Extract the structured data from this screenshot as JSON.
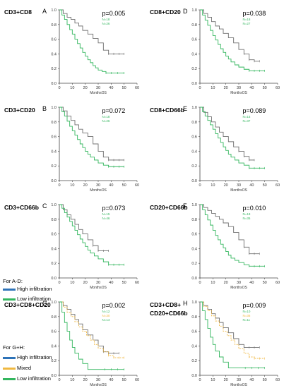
{
  "colors": {
    "high": "#707070",
    "mixed": "#f0b841",
    "low": "#33b65e",
    "high_legend": "#2e73b8",
    "axis": "#444444"
  },
  "rows": [
    {
      "label": "CD3+CD8"
    },
    {
      "label": "CD8+CD20"
    },
    {
      "label": "CD3+CD20"
    },
    {
      "label": "CD8+CD66b"
    },
    {
      "label": "CD3+CD66b"
    },
    {
      "label": "CD20+CD66b"
    },
    {
      "label": "CD3+CD8+CD20"
    },
    {
      "label_line1": "CD3+CD8+",
      "label_line2": "CD20+CD66b"
    }
  ],
  "legend_ad": {
    "title": "For A-D:",
    "items": [
      {
        "label": "High infiltration",
        "color": "#2e73b8"
      },
      {
        "label": "Low infiltration",
        "color": "#33b65e"
      }
    ]
  },
  "legend_gh": {
    "title": "For G+H:",
    "items": [
      {
        "label": "High infiltration",
        "color": "#2e73b8"
      },
      {
        "label": "Mixed",
        "color": "#f0b841"
      },
      {
        "label": "Low infiltration",
        "color": "#33b65e"
      }
    ]
  },
  "chart_data": [
    {
      "type": "line",
      "letter": "A",
      "pvalue": "p=0.005",
      "xlabel": "MonthsOS",
      "xlim": [
        0,
        60
      ],
      "ylim": [
        0,
        1.0
      ],
      "xticks": [
        "0",
        "10",
        "20",
        "30",
        "40",
        "50",
        "60"
      ],
      "yticks": [
        "0.0",
        "0.2",
        "0.4",
        "0.6",
        "0.8",
        "1.0"
      ],
      "n_labels": [
        {
          "text": "N=18",
          "color": "#33b65e"
        },
        {
          "text": "N=26",
          "color": "#33b65e"
        }
      ],
      "series": [
        {
          "color": "#707070",
          "x": [
            0,
            3,
            6,
            9,
            12,
            15,
            18,
            22,
            26,
            30,
            34,
            38,
            42,
            46,
            50
          ],
          "y": [
            1.0,
            0.95,
            0.9,
            0.87,
            0.82,
            0.78,
            0.72,
            0.67,
            0.61,
            0.55,
            0.45,
            0.4,
            0.4,
            0.4,
            0.4
          ]
        },
        {
          "color": "#33b65e",
          "x": [
            0,
            2,
            4,
            6,
            8,
            10,
            12,
            14,
            16,
            18,
            20,
            22,
            24,
            26,
            28,
            30,
            33,
            36,
            40,
            45,
            50
          ],
          "y": [
            1.0,
            0.93,
            0.87,
            0.8,
            0.73,
            0.67,
            0.6,
            0.54,
            0.48,
            0.42,
            0.37,
            0.32,
            0.28,
            0.24,
            0.21,
            0.18,
            0.16,
            0.14,
            0.14,
            0.14,
            0.14
          ]
        }
      ]
    },
    {
      "type": "line",
      "letter": "D",
      "pvalue": "p=0.038",
      "xlabel": "MonthsOS",
      "xlim": [
        0,
        60
      ],
      "ylim": [
        0,
        1.0
      ],
      "xticks": [
        "0",
        "10",
        "20",
        "30",
        "40",
        "50",
        "60"
      ],
      "yticks": [
        "0.0",
        "0.2",
        "0.4",
        "0.6",
        "0.8",
        "1.0"
      ],
      "n_labels": [
        {
          "text": "N=18",
          "color": "#33b65e"
        },
        {
          "text": "N=27",
          "color": "#33b65e"
        }
      ],
      "series": [
        {
          "color": "#707070",
          "x": [
            0,
            3,
            6,
            9,
            12,
            15,
            18,
            22,
            26,
            30,
            34,
            38,
            42,
            46
          ],
          "y": [
            1.0,
            0.95,
            0.9,
            0.84,
            0.78,
            0.74,
            0.68,
            0.62,
            0.55,
            0.46,
            0.4,
            0.32,
            0.3,
            0.3
          ]
        },
        {
          "color": "#33b65e",
          "x": [
            0,
            2,
            4,
            6,
            8,
            10,
            12,
            14,
            16,
            18,
            20,
            22,
            24,
            27,
            30,
            34,
            38,
            42,
            46,
            50
          ],
          "y": [
            1.0,
            0.93,
            0.86,
            0.79,
            0.72,
            0.65,
            0.59,
            0.53,
            0.47,
            0.42,
            0.37,
            0.33,
            0.29,
            0.25,
            0.22,
            0.19,
            0.17,
            0.17,
            0.17,
            0.17
          ]
        }
      ]
    },
    {
      "type": "line",
      "letter": "B",
      "pvalue": "p=0.072",
      "xlabel": "MonthsOS",
      "xlim": [
        0,
        60
      ],
      "ylim": [
        0,
        1.0
      ],
      "xticks": [
        "0",
        "10",
        "20",
        "30",
        "40",
        "50",
        "60"
      ],
      "yticks": [
        "0.0",
        "0.2",
        "0.4",
        "0.6",
        "0.8",
        "1.0"
      ],
      "n_labels": [
        {
          "text": "N=18",
          "color": "#33b65e"
        },
        {
          "text": "N=26",
          "color": "#33b65e"
        }
      ],
      "series": [
        {
          "color": "#707070",
          "x": [
            0,
            3,
            6,
            9,
            12,
            15,
            18,
            22,
            26,
            30,
            34,
            38,
            42,
            46,
            50
          ],
          "y": [
            1.0,
            0.95,
            0.88,
            0.82,
            0.76,
            0.7,
            0.65,
            0.6,
            0.5,
            0.4,
            0.32,
            0.28,
            0.28,
            0.28,
            0.28
          ]
        },
        {
          "color": "#33b65e",
          "x": [
            0,
            2,
            4,
            6,
            8,
            10,
            12,
            14,
            16,
            18,
            20,
            22,
            24,
            27,
            30,
            34,
            38,
            42,
            46,
            50
          ],
          "y": [
            1.0,
            0.94,
            0.88,
            0.81,
            0.74,
            0.68,
            0.62,
            0.56,
            0.5,
            0.45,
            0.4,
            0.36,
            0.32,
            0.28,
            0.24,
            0.21,
            0.19,
            0.19,
            0.19,
            0.19
          ]
        }
      ]
    },
    {
      "type": "line",
      "letter": "E",
      "pvalue": "p=0.089",
      "xlabel": "MonthsOS",
      "xlim": [
        0,
        60
      ],
      "ylim": [
        0,
        1.0
      ],
      "xticks": [
        "0",
        "10",
        "20",
        "30",
        "40",
        "50",
        "60"
      ],
      "yticks": [
        "0.0",
        "0.2",
        "0.4",
        "0.6",
        "0.8",
        "1.0"
      ],
      "n_labels": [
        {
          "text": "N=15",
          "color": "#33b65e"
        },
        {
          "text": "N=37",
          "color": "#33b65e"
        }
      ],
      "series": [
        {
          "color": "#707070",
          "x": [
            0,
            3,
            6,
            9,
            12,
            15,
            18,
            22,
            26,
            30,
            34,
            38,
            42
          ],
          "y": [
            1.0,
            0.93,
            0.87,
            0.8,
            0.73,
            0.66,
            0.6,
            0.53,
            0.46,
            0.4,
            0.33,
            0.28,
            0.28
          ]
        },
        {
          "color": "#33b65e",
          "x": [
            0,
            2,
            4,
            6,
            8,
            10,
            12,
            14,
            16,
            18,
            20,
            22,
            24,
            27,
            30,
            34,
            38,
            42,
            46,
            50
          ],
          "y": [
            1.0,
            0.94,
            0.88,
            0.82,
            0.76,
            0.7,
            0.64,
            0.58,
            0.52,
            0.46,
            0.41,
            0.36,
            0.32,
            0.28,
            0.24,
            0.21,
            0.17,
            0.17,
            0.17,
            0.17
          ]
        }
      ]
    },
    {
      "type": "line",
      "letter": "C",
      "pvalue": "p=0.073",
      "xlabel": "MonthsOS",
      "xlim": [
        0,
        60
      ],
      "ylim": [
        0,
        1.0
      ],
      "xticks": [
        "0",
        "10",
        "20",
        "30",
        "40",
        "50",
        "60"
      ],
      "yticks": [
        "0.0",
        "0.2",
        "0.4",
        "0.6",
        "0.8",
        "1.0"
      ],
      "n_labels": [
        {
          "text": "N=15",
          "color": "#33b65e"
        },
        {
          "text": "N=46",
          "color": "#33b65e"
        }
      ],
      "series": [
        {
          "color": "#707070",
          "x": [
            0,
            3,
            6,
            9,
            12,
            15,
            18,
            22,
            26,
            30,
            34,
            38
          ],
          "y": [
            1.0,
            0.93,
            0.86,
            0.8,
            0.73,
            0.66,
            0.6,
            0.52,
            0.44,
            0.37,
            0.37,
            0.37
          ]
        },
        {
          "color": "#33b65e",
          "x": [
            0,
            2,
            4,
            6,
            8,
            10,
            12,
            14,
            16,
            18,
            20,
            22,
            24,
            27,
            30,
            34,
            38,
            42,
            46,
            50
          ],
          "y": [
            1.0,
            0.95,
            0.89,
            0.83,
            0.77,
            0.71,
            0.65,
            0.59,
            0.53,
            0.48,
            0.43,
            0.38,
            0.34,
            0.3,
            0.26,
            0.22,
            0.18,
            0.18,
            0.18,
            0.18
          ]
        }
      ]
    },
    {
      "type": "line",
      "letter": "F",
      "pvalue": "p=0.010",
      "xlabel": "MonthsOS",
      "xlim": [
        0,
        60
      ],
      "ylim": [
        0,
        1.0
      ],
      "xticks": [
        "0",
        "10",
        "20",
        "30",
        "40",
        "50",
        "60"
      ],
      "yticks": [
        "0.0",
        "0.2",
        "0.4",
        "0.6",
        "0.8",
        "1.0"
      ],
      "n_labels": [
        {
          "text": "N=18",
          "color": "#33b65e"
        },
        {
          "text": "N=35",
          "color": "#33b65e"
        }
      ],
      "series": [
        {
          "color": "#707070",
          "x": [
            0,
            3,
            6,
            9,
            12,
            15,
            18,
            22,
            26,
            30,
            34,
            38,
            42,
            46
          ],
          "y": [
            1.0,
            0.96,
            0.92,
            0.88,
            0.84,
            0.8,
            0.75,
            0.7,
            0.62,
            0.52,
            0.42,
            0.33,
            0.33,
            0.33
          ]
        },
        {
          "color": "#33b65e",
          "x": [
            0,
            2,
            4,
            6,
            8,
            10,
            12,
            14,
            16,
            18,
            20,
            22,
            24,
            27,
            30,
            34,
            38,
            42,
            46,
            50
          ],
          "y": [
            1.0,
            0.93,
            0.86,
            0.79,
            0.72,
            0.65,
            0.58,
            0.52,
            0.46,
            0.41,
            0.36,
            0.31,
            0.27,
            0.24,
            0.21,
            0.18,
            0.16,
            0.16,
            0.16,
            0.16
          ]
        }
      ]
    },
    {
      "type": "line",
      "letter": "G",
      "pvalue": "p=0.002",
      "xlabel": "MonthsOS",
      "xlim": [
        0,
        60
      ],
      "ylim": [
        0,
        1.0
      ],
      "xticks": [
        "0",
        "10",
        "20",
        "30",
        "40",
        "50",
        "60"
      ],
      "yticks": [
        "0.0",
        "0.2",
        "0.4",
        "0.6",
        "0.8",
        "1.0"
      ],
      "n_labels": [
        {
          "text": "N=12",
          "color": "#33b65e"
        },
        {
          "text": "N=30",
          "color": "#f0b841"
        },
        {
          "text": "N=14",
          "color": "#33b65e"
        }
      ],
      "series": [
        {
          "color": "#707070",
          "x": [
            0,
            3,
            6,
            9,
            12,
            15,
            18,
            22,
            26,
            30,
            34,
            38,
            42,
            46
          ],
          "y": [
            1.0,
            0.95,
            0.9,
            0.83,
            0.76,
            0.7,
            0.62,
            0.55,
            0.48,
            0.4,
            0.32,
            0.3,
            0.3,
            0.3
          ]
        },
        {
          "color": "#f0b841",
          "dashed": true,
          "x": [
            0,
            3,
            6,
            9,
            12,
            15,
            18,
            21,
            24,
            27,
            30,
            34,
            38,
            42,
            46,
            50
          ],
          "y": [
            1.0,
            0.93,
            0.86,
            0.8,
            0.73,
            0.66,
            0.6,
            0.54,
            0.48,
            0.42,
            0.37,
            0.32,
            0.27,
            0.24,
            0.24,
            0.24
          ]
        },
        {
          "color": "#33b65e",
          "x": [
            0,
            2,
            4,
            6,
            8,
            10,
            12,
            15,
            18,
            22,
            26,
            30,
            35,
            40,
            45,
            50
          ],
          "y": [
            1.0,
            0.86,
            0.72,
            0.6,
            0.48,
            0.38,
            0.3,
            0.22,
            0.16,
            0.08,
            0.08,
            0.08,
            0.08,
            0.08,
            0.08,
            0.08
          ]
        }
      ]
    },
    {
      "type": "line",
      "letter": "H",
      "pvalue": "p=0.009",
      "xlabel": "MonthsOS",
      "xlim": [
        0,
        60
      ],
      "ylim": [
        0,
        1.0
      ],
      "xticks": [
        "0",
        "10",
        "20",
        "30",
        "40",
        "50",
        "60"
      ],
      "yticks": [
        "0.0",
        "0.2",
        "0.4",
        "0.6",
        "0.8",
        "1.0"
      ],
      "n_labels": [
        {
          "text": "N=10",
          "color": "#33b65e"
        },
        {
          "text": "N=36",
          "color": "#f0b841"
        },
        {
          "text": "N=11",
          "color": "#33b65e"
        }
      ],
      "series": [
        {
          "color": "#707070",
          "x": [
            0,
            3,
            6,
            9,
            12,
            15,
            18,
            22,
            26,
            30,
            34,
            38,
            42,
            46
          ],
          "y": [
            1.0,
            0.95,
            0.9,
            0.84,
            0.78,
            0.72,
            0.65,
            0.58,
            0.5,
            0.42,
            0.38,
            0.38,
            0.38,
            0.38
          ]
        },
        {
          "color": "#f0b841",
          "dashed": true,
          "x": [
            0,
            3,
            6,
            9,
            12,
            15,
            18,
            21,
            24,
            27,
            30,
            34,
            38,
            42,
            46,
            50
          ],
          "y": [
            1.0,
            0.94,
            0.88,
            0.81,
            0.74,
            0.67,
            0.6,
            0.54,
            0.48,
            0.42,
            0.36,
            0.3,
            0.25,
            0.23,
            0.23,
            0.23
          ]
        },
        {
          "color": "#33b65e",
          "x": [
            0,
            2,
            4,
            6,
            8,
            10,
            12,
            15,
            18,
            22,
            26,
            30,
            35,
            40,
            45,
            50
          ],
          "y": [
            1.0,
            0.88,
            0.76,
            0.64,
            0.52,
            0.42,
            0.33,
            0.25,
            0.18,
            0.1,
            0.1,
            0.1,
            0.1,
            0.1,
            0.1,
            0.1
          ]
        }
      ]
    }
  ]
}
